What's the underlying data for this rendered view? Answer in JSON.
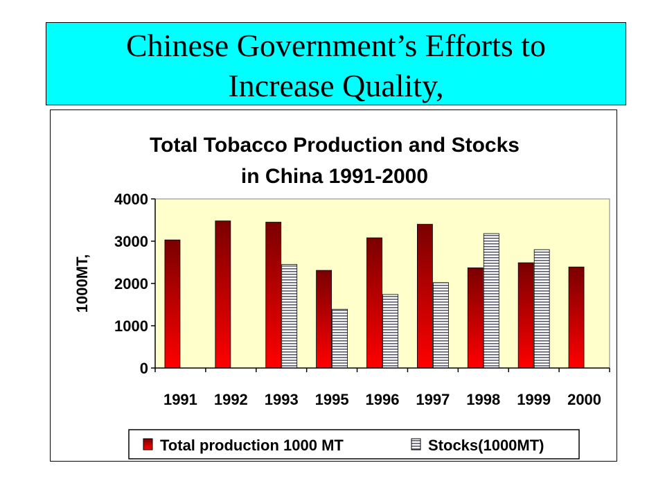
{
  "slide": {
    "title_line1": "Chinese Government’s Efforts to",
    "title_line2": "Increase Quality,"
  },
  "colors": {
    "title_background": "#00ffff",
    "plot_background": "#ffffcc",
    "production_top": "#7a0000",
    "production_bottom": "#ff0000",
    "stocks_fill": "#ffffff",
    "stocks_stripe": "#5a5a78"
  },
  "chart_data": {
    "type": "bar",
    "title_line1": "Total Tobacco Production and Stocks",
    "title_line2": "in China 1991-2000",
    "ylabel": "1000MT,",
    "xlabel": "",
    "ylim": [
      0,
      4000
    ],
    "yticks": [
      0,
      1000,
      2000,
      3000,
      4000
    ],
    "grid": false,
    "legend_position": "bottom",
    "categories": [
      "1991",
      "1992",
      "1993",
      "1995",
      "1996",
      "1997",
      "1998",
      "1999",
      "2000"
    ],
    "series": [
      {
        "name": "Total production 1000 MT",
        "values": [
          3030,
          3480,
          3450,
          2310,
          3080,
          3400,
          2370,
          2490,
          2390
        ]
      },
      {
        "name": "Stocks(1000MT)",
        "values": [
          0,
          0,
          2450,
          1390,
          1740,
          2020,
          3180,
          2800,
          0
        ]
      }
    ]
  }
}
